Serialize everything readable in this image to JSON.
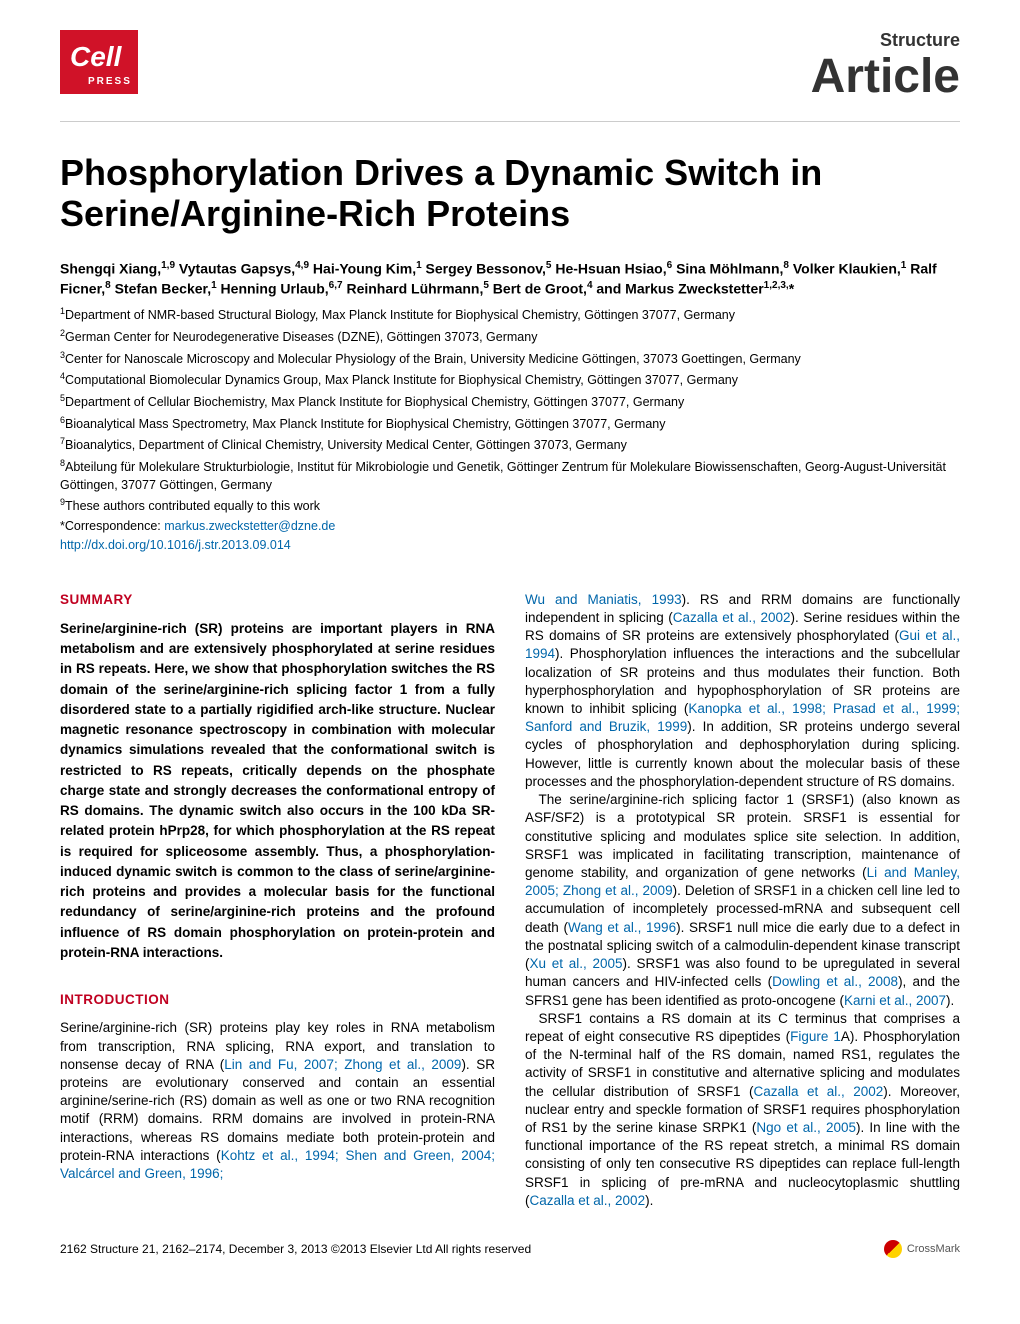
{
  "header": {
    "journal": "Structure",
    "type": "Article"
  },
  "title": "Phosphorylation Drives a Dynamic Switch in Serine/Arginine-Rich Proteins",
  "authors_html": "Shengqi Xiang,<sup>1,9</sup> Vytautas Gapsys,<sup>4,9</sup> Hai-Young Kim,<sup>1</sup> Sergey Bessonov,<sup>5</sup> He-Hsuan Hsiao,<sup>6</sup> Sina Möhlmann,<sup>8</sup> Volker Klaukien,<sup>1</sup> Ralf Ficner,<sup>8</sup> Stefan Becker,<sup>1</sup> Henning Urlaub,<sup>6,7</sup> Reinhard Lührmann,<sup>5</sup> Bert de Groot,<sup>4</sup> and Markus Zweckstetter<sup>1,2,3,</sup>*",
  "affiliations": [
    "<sup>1</sup>Department of NMR-based Structural Biology, Max Planck Institute for Biophysical Chemistry, Göttingen 37077, Germany",
    "<sup>2</sup>German Center for Neurodegenerative Diseases (DZNE), Göttingen 37073, Germany",
    "<sup>3</sup>Center for Nanoscale Microscopy and Molecular Physiology of the Brain, University Medicine Göttingen, 37073 Goettingen, Germany",
    "<sup>4</sup>Computational Biomolecular Dynamics Group, Max Planck Institute for Biophysical Chemistry, Göttingen 37077, Germany",
    "<sup>5</sup>Department of Cellular Biochemistry, Max Planck Institute for Biophysical Chemistry, Göttingen 37077, Germany",
    "<sup>6</sup>Bioanalytical Mass Spectrometry, Max Planck Institute for Biophysical Chemistry, Göttingen 37077, Germany",
    "<sup>7</sup>Bioanalytics, Department of Clinical Chemistry, University Medical Center, Göttingen 37073, Germany",
    "<sup>8</sup>Abteilung für Molekulare Strukturbiologie, Institut für Mikrobiologie und Genetik, Göttinger Zentrum für Molekulare Biowissenschaften, Georg-August-Universität Göttingen, 37077 Göttingen, Germany",
    "<sup>9</sup>These authors contributed equally to this work"
  ],
  "correspondence_label": "*Correspondence: ",
  "correspondence_email": "markus.zweckstetter@dzne.de",
  "doi": "http://dx.doi.org/10.1016/j.str.2013.09.014",
  "sections": {
    "summary_head": "SUMMARY",
    "summary": "Serine/arginine-rich (SR) proteins are important players in RNA metabolism and are extensively phosphorylated at serine residues in RS repeats. Here, we show that phosphorylation switches the RS domain of the serine/arginine-rich splicing factor 1 from a fully disordered state to a partially rigidified arch-like structure. Nuclear magnetic resonance spectroscopy in combination with molecular dynamics simulations revealed that the conformational switch is restricted to RS repeats, critically depends on the phosphate charge state and strongly decreases the conformational entropy of RS domains. The dynamic switch also occurs in the 100 kDa SR-related protein hPrp28, for which phosphorylation at the RS repeat is required for spliceosome assembly. Thus, a phosphorylation-induced dynamic switch is common to the class of serine/arginine-rich proteins and provides a molecular basis for the functional redundancy of serine/arginine-rich proteins and the profound influence of RS domain phosphorylation on protein-protein and protein-RNA interactions.",
    "intro_head": "INTRODUCTION",
    "intro_col1": "Serine/arginine-rich (SR) proteins play key roles in RNA metabolism from transcription, RNA splicing, RNA export, and translation to nonsense decay of RNA (<span class=\"ref\">Lin and Fu, 2007; Zhong et al., 2009</span>). SR proteins are evolutionary conserved and contain an essential arginine/serine-rich (RS) domain as well as one or two RNA recognition motif (RRM) domains. RRM domains are involved in protein-RNA interactions, whereas RS domains mediate both protein-protein and protein-RNA interactions (<span class=\"ref\">Kohtz et al., 1994; Shen and Green, 2004; Valcárcel and Green, 1996;</span>",
    "col2_top": "<span class=\"ref\">Wu and Maniatis, 1993</span>). RS and RRM domains are functionally independent in splicing (<span class=\"ref\">Cazalla et al., 2002</span>). Serine residues within the RS domains of SR proteins are extensively phosphorylated (<span class=\"ref\">Gui et al., 1994</span>). Phosphorylation influences the interactions and the subcellular localization of SR proteins and thus modulates their function. Both hyperphosphorylation and hypophosphorylation of SR proteins are known to inhibit splicing (<span class=\"ref\">Kanopka et al., 1998; Prasad et al., 1999; Sanford and Bruzik, 1999</span>). In addition, SR proteins undergo several cycles of phosphorylation and dephosphorylation during splicing. However, little is currently known about the molecular basis of these processes and the phosphorylation-dependent structure of RS domains.",
    "col2_p2": "The serine/arginine-rich splicing factor 1 (SRSF1) (also known as ASF/SF2) is a prototypical SR protein. SRSF1 is essential for constitutive splicing and modulates splice site selection. In addition, SRSF1 was implicated in facilitating transcription, maintenance of genome stability, and organization of gene networks (<span class=\"ref\">Li and Manley, 2005; Zhong et al., 2009</span>). Deletion of SRSF1 in a chicken cell line led to accumulation of incompletely processed-mRNA and subsequent cell death (<span class=\"ref\">Wang et al., 1996</span>). SRSF1 null mice die early due to a defect in the postnatal splicing switch of a calmodulin-dependent kinase transcript (<span class=\"ref\">Xu et al., 2005</span>). SRSF1 was also found to be upregulated in several human cancers and HIV-infected cells (<span class=\"ref\">Dowling et al., 2008</span>), and the SFRS1 gene has been identified as proto-oncogene (<span class=\"ref\">Karni et al., 2007</span>).",
    "col2_p3": "SRSF1 contains a RS domain at its C terminus that comprises a repeat of eight consecutive RS dipeptides (<span class=\"ref\">Figure 1</span>A). Phosphorylation of the N-terminal half of the RS domain, named RS1, regulates the activity of SRSF1 in constitutive and alternative splicing and modulates the cellular distribution of SRSF1 (<span class=\"ref\">Cazalla et al., 2002</span>). Moreover, nuclear entry and speckle formation of SRSF1 requires phosphorylation of RS1 by the serine kinase SRPK1 (<span class=\"ref\">Ngo et al., 2005</span>). In line with the functional importance of the RS repeat stretch, a minimal RS domain consisting of only ten consecutive RS dipeptides can replace full-length SRSF1 in splicing of pre-mRNA and nucleocytoplasmic shuttling (<span class=\"ref\">Cazalla et al., 2002</span>)."
  },
  "footer": {
    "citation": "2162   Structure 21, 2162–2174, December 3, 2013 ©2013 Elsevier Ltd All rights reserved",
    "crossmark": "CrossMark"
  },
  "colors": {
    "heading_red": "#c00020",
    "link_blue": "#0066aa",
    "logo_red": "#d01228"
  },
  "logo": {
    "bg": "#d01228",
    "text_color": "#ffffff",
    "word": "Cell",
    "sub": "PRESS"
  }
}
